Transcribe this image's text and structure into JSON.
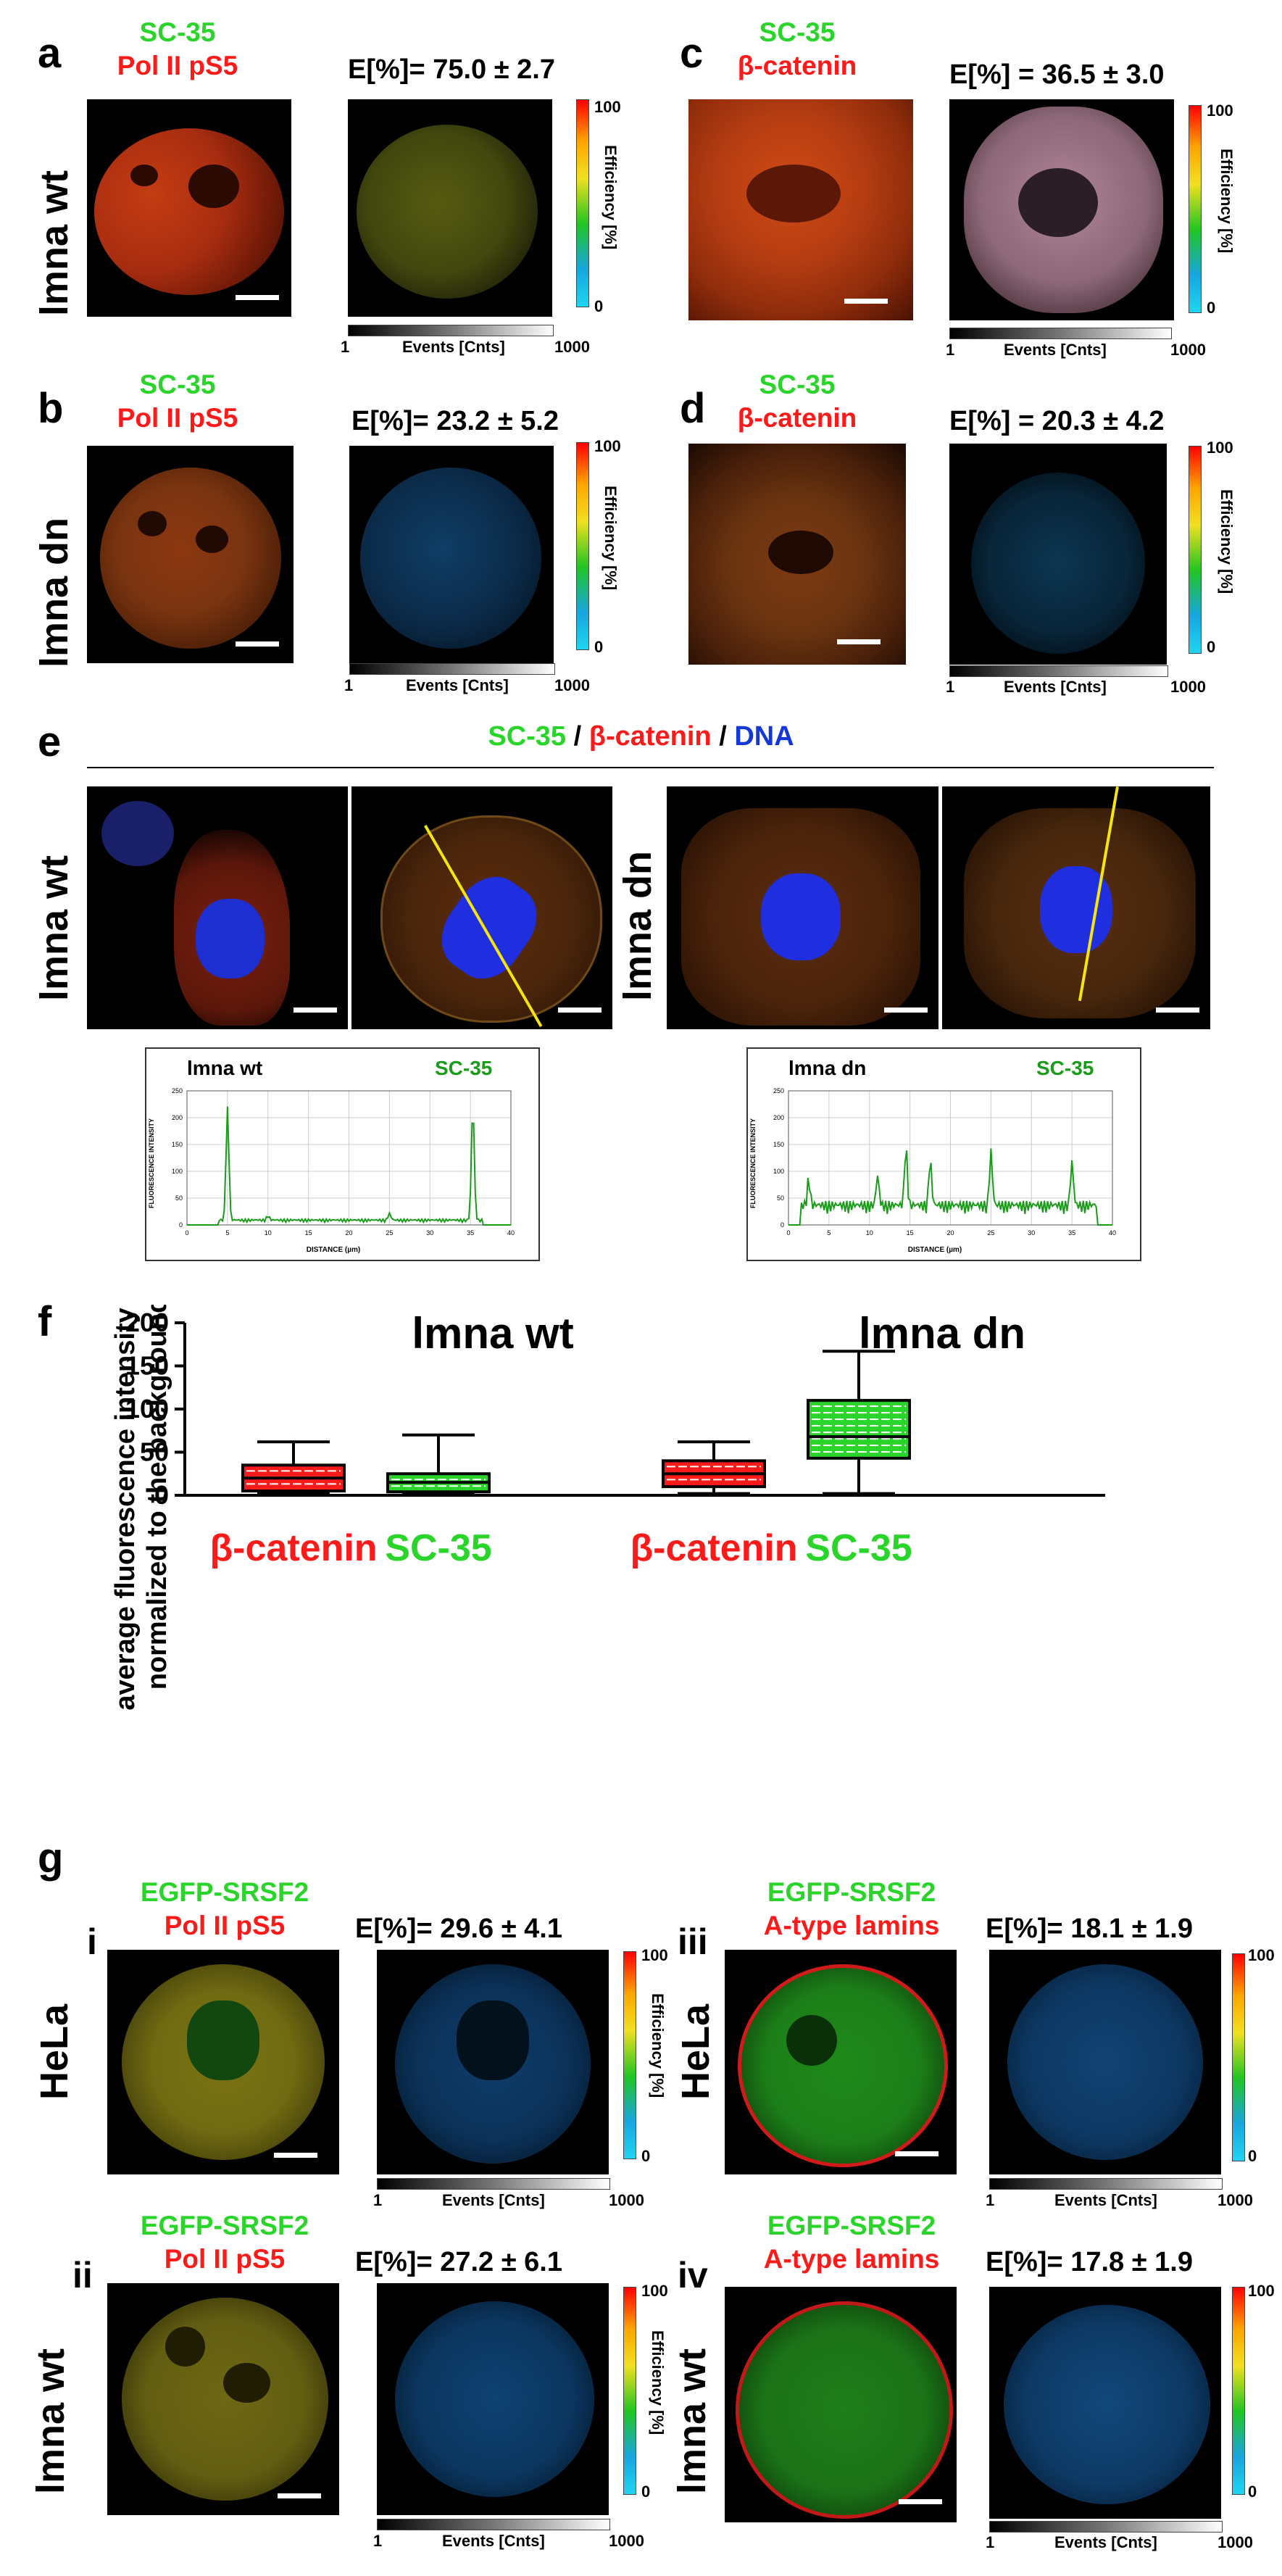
{
  "panel_labels": {
    "a": "a",
    "b": "b",
    "c": "c",
    "d": "d",
    "e": "e",
    "f": "f",
    "g": "g"
  },
  "row_labels": {
    "wt": "lmna wt",
    "dn": "lmna dn",
    "hela": "HeLa"
  },
  "ab": {
    "sc35": "SC-35",
    "pol": "Pol II pS5",
    "beta": "β-catenin",
    "egfp": "EGFP-SRSF2",
    "lamins": "A-type lamins",
    "dna": "DNA",
    "slash": " / "
  },
  "efficiency": {
    "a": "E[%]= 75.0 ± 2.7",
    "b": "E[%]= 23.2 ± 5.2",
    "c": "E[%] = 36.5 ± 3.0",
    "d": "E[%] = 20.3 ± 4.2",
    "gi": "E[%]=  29.6 ± 4.1",
    "gii": "E[%]=  27.2 ± 6.1",
    "giii": "E[%]= 18.1 ± 1.9",
    "giv": "E[%]= 17.8 ± 1.9"
  },
  "colorbar": {
    "top": "100",
    "bottom": "0",
    "label": "Efficiency [%]",
    "h_left": "1",
    "h_right": "1000",
    "h_label": "Events [Cnts]"
  },
  "g_roman": {
    "i": "i",
    "ii": "ii",
    "iii": "iii",
    "iv": "iv"
  },
  "profile_wt": {
    "title": "lmna wt",
    "marker": "SC-35",
    "ylabel": "FLUORESCENCE INTENSITY",
    "xlabel": "DISTANCE (µm)",
    "yticks": [
      "0",
      "50",
      "100",
      "150",
      "200",
      "250"
    ],
    "xticks": [
      "0",
      "5",
      "10",
      "15",
      "20",
      "25",
      "30",
      "35",
      "40"
    ]
  },
  "profile_dn": {
    "title": "lmna dn",
    "marker": "SC-35",
    "ylabel": "FLUORESCENCE INTENSITY",
    "xlabel": "DISTANCE (µm)",
    "yticks": [
      "0",
      "50",
      "100",
      "150",
      "200",
      "250"
    ],
    "xticks": [
      "0",
      "5",
      "10",
      "15",
      "20",
      "25",
      "30",
      "35",
      "40"
    ]
  },
  "colors": {
    "green": "#2ad52a",
    "red": "#ff1a1a",
    "blue": "#1437d8",
    "yellow": "#f5e50a",
    "plot_green": "#1a9b1a"
  },
  "chart_data": {
    "type": "box",
    "title": "",
    "group_titles": [
      "lmna wt",
      "lmna dn"
    ],
    "ylabel": "average fluorescence intensity normalized to the background",
    "ylim": [
      0,
      200
    ],
    "yticks": [
      "0",
      "50",
      "100",
      "150",
      "200"
    ],
    "categories": [
      "β-catenin",
      "SC-35",
      "β-catenin",
      "SC-35"
    ],
    "series": [
      {
        "group": "lmna wt",
        "label": "β-catenin",
        "color": "#ff1a1a",
        "min": 2,
        "q1": 5,
        "median": 20,
        "q3": 35,
        "max": 62
      },
      {
        "group": "lmna wt",
        "label": "SC-35",
        "color": "#2ad52a",
        "min": 2,
        "q1": 4,
        "median": 15,
        "q3": 25,
        "max": 70
      },
      {
        "group": "lmna dn",
        "label": "β-catenin",
        "color": "#ff1a1a",
        "min": 2,
        "q1": 10,
        "median": 25,
        "q3": 40,
        "max": 62
      },
      {
        "group": "lmna dn",
        "label": "SC-35",
        "color": "#2ad52a",
        "min": 2,
        "q1": 43,
        "median": 68,
        "q3": 110,
        "max": 167
      }
    ],
    "grid": false
  }
}
